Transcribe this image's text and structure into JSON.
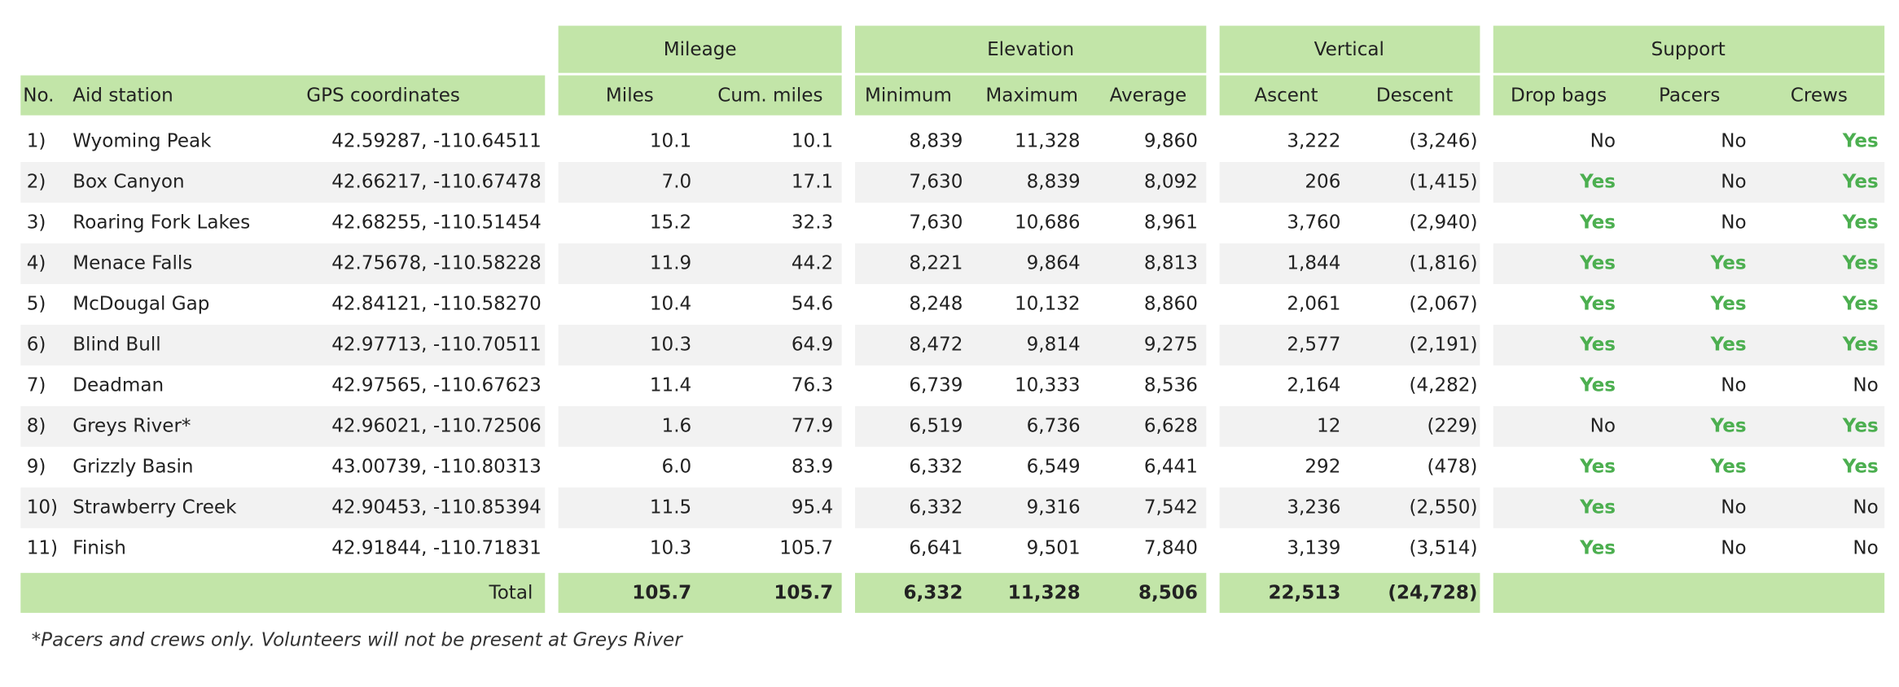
{
  "table": {
    "group_headers": [
      "Mileage",
      "Elevation",
      "Vertical",
      "Support"
    ],
    "columns": [
      "No.",
      "Aid station",
      "GPS coordinates",
      "Miles",
      "Cum. miles",
      "Minimum",
      "Maximum",
      "Average",
      "Ascent",
      "Descent",
      "Drop bags",
      "Pacers",
      "Crews"
    ],
    "rows": [
      [
        "1)",
        "Wyoming Peak",
        "42.59287, -110.64511",
        "10.1",
        "10.1",
        "8,839",
        "11,328",
        "9,860",
        "3,222",
        "(3,246)",
        "No",
        "No",
        "Yes"
      ],
      [
        "2)",
        "Box Canyon",
        "42.66217, -110.67478",
        "7.0",
        "17.1",
        "7,630",
        "8,839",
        "8,092",
        "206",
        "(1,415)",
        "Yes",
        "No",
        "Yes"
      ],
      [
        "3)",
        "Roaring Fork Lakes",
        "42.68255, -110.51454",
        "15.2",
        "32.3",
        "7,630",
        "10,686",
        "8,961",
        "3,760",
        "(2,940)",
        "Yes",
        "No",
        "Yes"
      ],
      [
        "4)",
        "Menace Falls",
        "42.75678, -110.58228",
        "11.9",
        "44.2",
        "8,221",
        "9,864",
        "8,813",
        "1,844",
        "(1,816)",
        "Yes",
        "Yes",
        "Yes"
      ],
      [
        "5)",
        "McDougal Gap",
        "42.84121, -110.58270",
        "10.4",
        "54.6",
        "8,248",
        "10,132",
        "8,860",
        "2,061",
        "(2,067)",
        "Yes",
        "Yes",
        "Yes"
      ],
      [
        "6)",
        "Blind Bull",
        "42.97713, -110.70511",
        "10.3",
        "64.9",
        "8,472",
        "9,814",
        "9,275",
        "2,577",
        "(2,191)",
        "Yes",
        "Yes",
        "Yes"
      ],
      [
        "7)",
        "Deadman",
        "42.97565, -110.67623",
        "11.4",
        "76.3",
        "6,739",
        "10,333",
        "8,536",
        "2,164",
        "(4,282)",
        "Yes",
        "No",
        "No"
      ],
      [
        "8)",
        "Greys River*",
        "42.96021, -110.72506",
        "1.6",
        "77.9",
        "6,519",
        "6,736",
        "6,628",
        "12",
        "(229)",
        "No",
        "Yes",
        "Yes"
      ],
      [
        "9)",
        "Grizzly Basin",
        "43.00739, -110.80313",
        "6.0",
        "83.9",
        "6,332",
        "6,549",
        "6,441",
        "292",
        "(478)",
        "Yes",
        "Yes",
        "Yes"
      ],
      [
        "10)",
        "Strawberry Creek",
        "42.90453, -110.85394",
        "11.5",
        "95.4",
        "6,332",
        "9,316",
        "7,542",
        "3,236",
        "(2,550)",
        "Yes",
        "No",
        "No"
      ],
      [
        "11)",
        "Finish",
        "42.91844, -110.71831",
        "10.3",
        "105.7",
        "6,641",
        "9,501",
        "7,840",
        "3,139",
        "(3,514)",
        "Yes",
        "No",
        "No"
      ]
    ],
    "total": [
      "Total",
      "105.7",
      "105.7",
      "6,332",
      "11,328",
      "8,506",
      "22,513",
      "(24,728)"
    ],
    "highlight_value": "Yes",
    "highlight_color": "#4caf50",
    "header_color": "#c2e5a8",
    "stripe_color": "#f2f2f2"
  },
  "footnote": "*Pacers and crews only. Volunteers will not be present at Greys River"
}
